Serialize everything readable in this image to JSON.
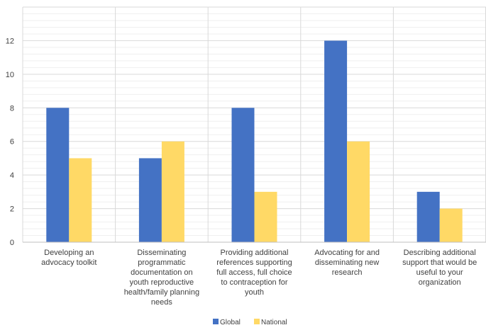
{
  "chart_data": {
    "type": "bar",
    "categories": [
      [
        "Developing an",
        "advocacy toolkit"
      ],
      [
        "Disseminating",
        "programmatic",
        "documentation on",
        "youth reproductive",
        "health/family planning",
        "needs"
      ],
      [
        "Providing additional",
        "references supporting",
        "full access, full choice",
        "to contraception for",
        "youth"
      ],
      [
        "Advocating for and",
        "disseminating new",
        "research"
      ],
      [
        "Describing additional",
        "support that would be",
        "useful to your",
        "organization"
      ]
    ],
    "series": [
      {
        "name": "Global",
        "color": "#4472C4",
        "values": [
          8,
          5,
          8,
          12,
          3
        ]
      },
      {
        "name": "National",
        "color": "#FFD966",
        "values": [
          5,
          6,
          3,
          6,
          2
        ]
      }
    ],
    "ylim": [
      0,
      14
    ],
    "yticks": [
      0,
      2,
      4,
      6,
      8,
      10,
      12
    ],
    "grid": true,
    "legend_position": "bottom",
    "title": "",
    "xlabel": "",
    "ylabel": ""
  }
}
